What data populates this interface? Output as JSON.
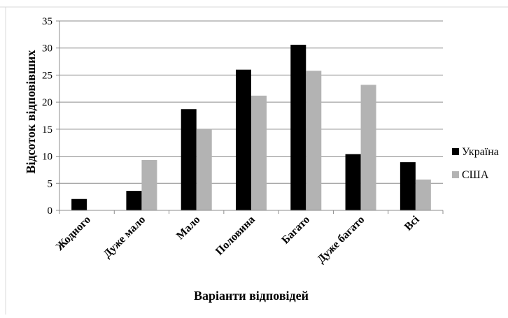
{
  "chart_data": {
    "type": "bar",
    "title": "",
    "xlabel": "Варіанти відповідей",
    "ylabel": "Відсоток відповівших",
    "ylim": [
      0,
      35
    ],
    "yticks": [
      0,
      5,
      10,
      15,
      20,
      25,
      30,
      35
    ],
    "grid": true,
    "legend_position": "right",
    "categories": [
      "Жодного",
      "Дуже мало",
      "Мало",
      "Половина",
      "Багато",
      "Дуже багато",
      "Всі"
    ],
    "series": [
      {
        "name": "Україна",
        "color": "#000000",
        "values": [
          2.1,
          3.6,
          18.7,
          26.0,
          30.6,
          10.4,
          8.9
        ]
      },
      {
        "name": "США",
        "color": "#b3b3b3",
        "values": [
          0,
          9.3,
          15.0,
          21.2,
          25.8,
          23.2,
          5.7
        ]
      }
    ]
  }
}
